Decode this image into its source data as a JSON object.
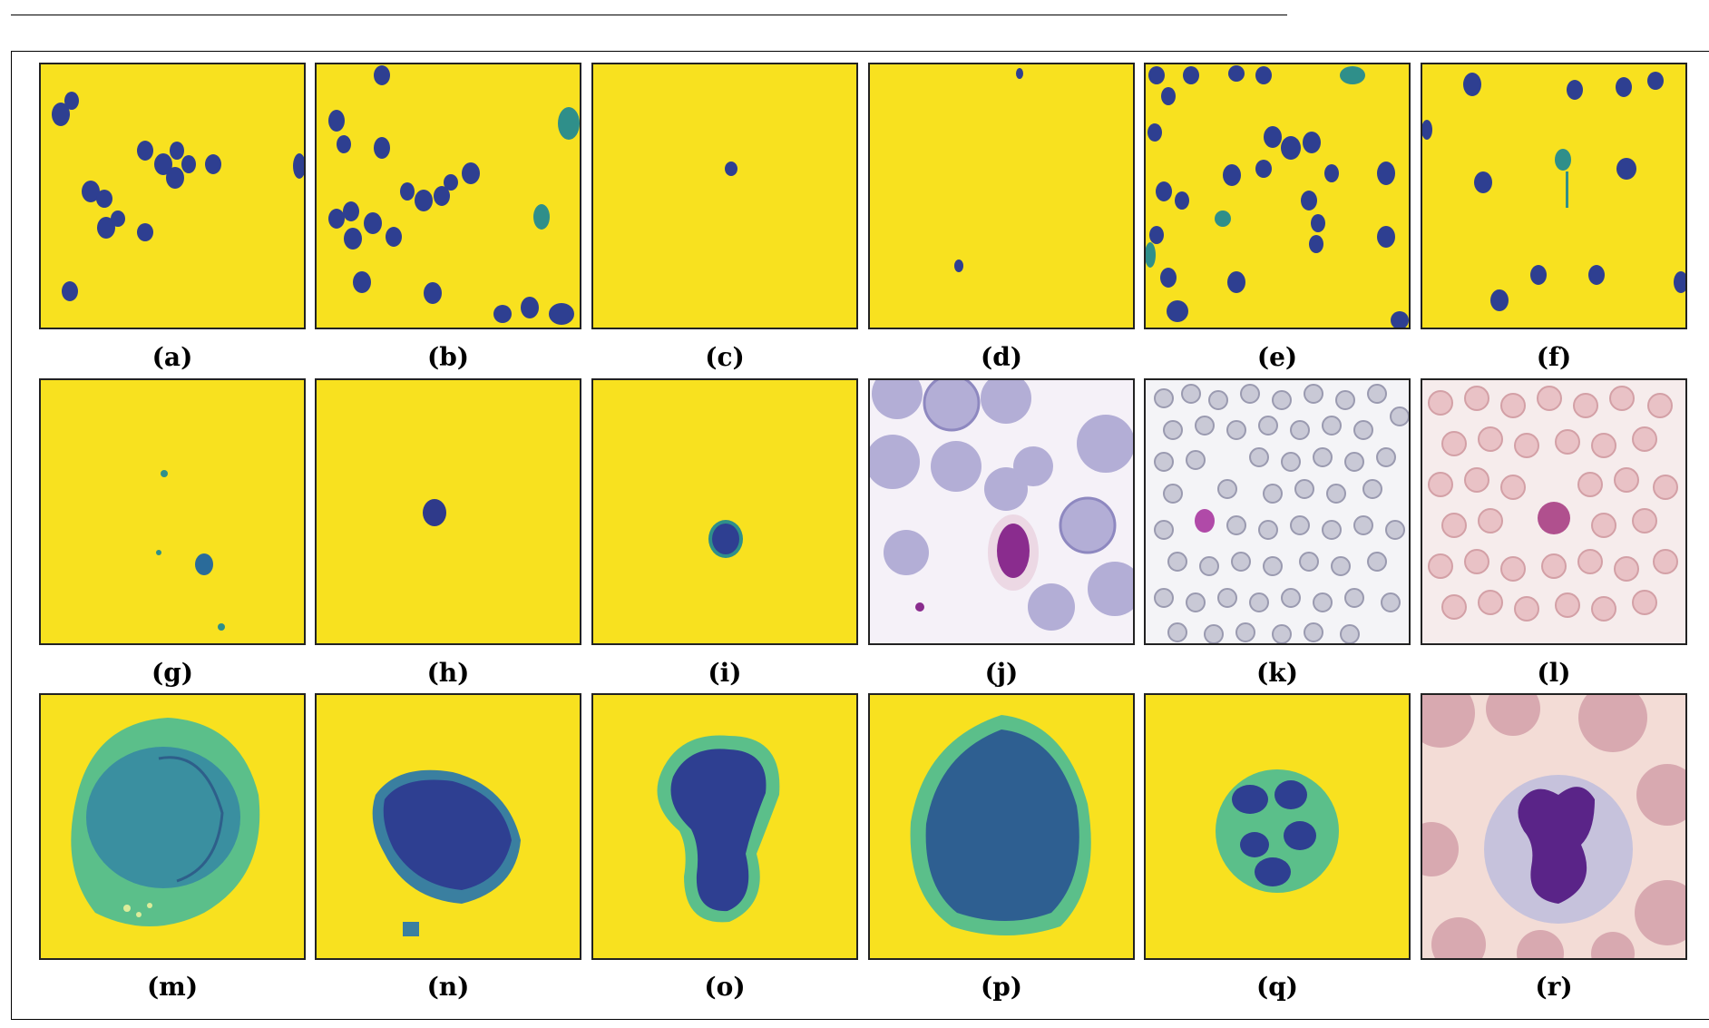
{
  "figure": {
    "panels": [
      {
        "id": "a",
        "caption": "(a)"
      },
      {
        "id": "b",
        "caption": "(b)"
      },
      {
        "id": "c",
        "caption": "(c)"
      },
      {
        "id": "d",
        "caption": "(d)"
      },
      {
        "id": "e",
        "caption": "(e)"
      },
      {
        "id": "f",
        "caption": "(f)"
      },
      {
        "id": "g",
        "caption": "(g)"
      },
      {
        "id": "h",
        "caption": "(h)"
      },
      {
        "id": "i",
        "caption": "(i)"
      },
      {
        "id": "j",
        "caption": "(j)"
      },
      {
        "id": "k",
        "caption": "(k)"
      },
      {
        "id": "l",
        "caption": "(l)"
      },
      {
        "id": "m",
        "caption": "(m)"
      },
      {
        "id": "n",
        "caption": "(n)"
      },
      {
        "id": "o",
        "caption": "(o)"
      },
      {
        "id": "p",
        "caption": "(p)"
      },
      {
        "id": "q",
        "caption": "(q)"
      },
      {
        "id": "r",
        "caption": "(r)"
      }
    ]
  },
  "colors": {
    "mask_background": "#f8e11f",
    "cell_dark": "#2e3f91",
    "cell_teal": "#2f8f8a",
    "cytoplasm_green": "#5bbf8a",
    "rbc_lavender": "#b3aed6",
    "nucleus_purple": "#8a2c8e",
    "rbc_pink": "#e9c2c6",
    "stain_background": "#f3dcd6"
  }
}
